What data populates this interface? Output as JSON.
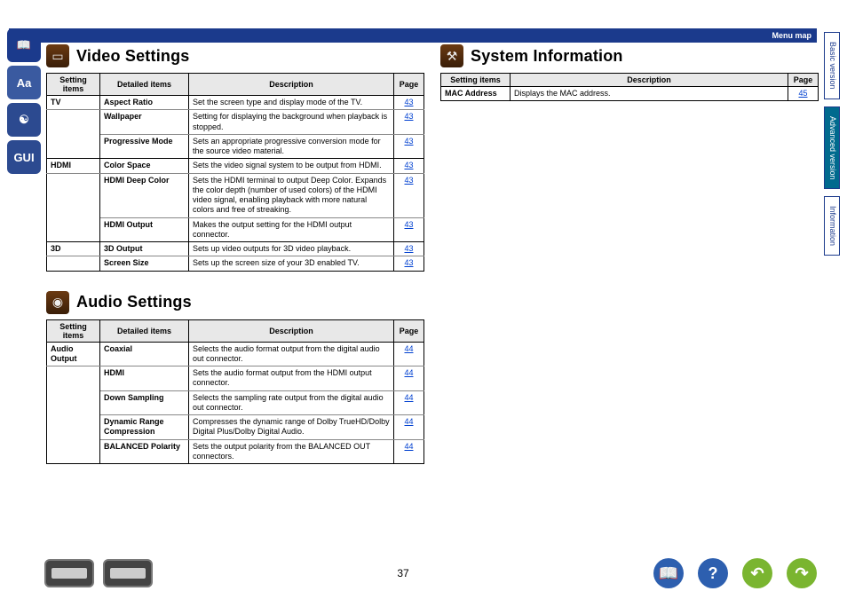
{
  "menumap": "Menu map",
  "pageNum": "37",
  "rightTabs": {
    "basic": "Basic version",
    "adv": "Advanced version",
    "info": "Information"
  },
  "video": {
    "title": "Video Settings",
    "headers": {
      "si": "Setting items",
      "di": "Detailed items",
      "desc": "Description",
      "pg": "Page"
    },
    "rows": [
      {
        "si": "TV",
        "di": "Aspect Ratio",
        "desc": "Set the screen type and display mode of the TV.",
        "pg": "43",
        "g": false
      },
      {
        "si": "",
        "di": "Wallpaper",
        "desc": "Setting for displaying the background when playback is stopped.",
        "pg": "43",
        "g": false
      },
      {
        "si": "",
        "di": "Progressive Mode",
        "desc": "Sets an appropriate progressive conversion mode for the source video material.",
        "pg": "43",
        "g": true
      },
      {
        "si": "HDMI",
        "di": "Color Space",
        "desc": "Sets the video signal system to be output from HDMI.",
        "pg": "43",
        "g": false
      },
      {
        "si": "",
        "di": "HDMI Deep Color",
        "desc": "Sets the HDMI terminal to output Deep Color. Expands the color depth (number of used colors) of the HDMI video signal, enabling playback with more natural colors and free of streaking.",
        "pg": "43",
        "g": false
      },
      {
        "si": "",
        "di": "HDMI Output",
        "desc": "Makes the output setting for the HDMI output connector.",
        "pg": "43",
        "g": true
      },
      {
        "si": "3D",
        "di": "3D Output",
        "desc": "Sets up video outputs for 3D video playback.",
        "pg": "43",
        "g": false
      },
      {
        "si": "",
        "di": "Screen Size",
        "desc": "Sets up the screen size of your 3D enabled TV.",
        "pg": "43",
        "g": true
      }
    ]
  },
  "audio": {
    "title": "Audio Settings",
    "headers": {
      "si": "Setting items",
      "di": "Detailed items",
      "desc": "Description",
      "pg": "Page"
    },
    "rows": [
      {
        "si": "Audio Output",
        "di": "Coaxial",
        "desc": "Selects the audio format output from the digital audio out connector.",
        "pg": "44",
        "g": false
      },
      {
        "si": "",
        "di": "HDMI",
        "desc": "Sets the audio format output from the HDMI output connector.",
        "pg": "44",
        "g": false
      },
      {
        "si": "",
        "di": "Down Sampling",
        "desc": "Selects the sampling rate output from the digital audio out connector.",
        "pg": "44",
        "g": false
      },
      {
        "si": "",
        "di": "Dynamic Range Compression",
        "desc": "Compresses the dynamic range of Dolby TrueHD/Dolby Digital Plus/Dolby Digital Audio.",
        "pg": "44",
        "g": false
      },
      {
        "si": "",
        "di": "BALANCED Polarity",
        "desc": "Sets the output polarity from the BALANCED OUT connectors.",
        "pg": "44",
        "g": true
      }
    ]
  },
  "system": {
    "title": "System Information",
    "headers": {
      "si": "Setting items",
      "desc": "Description",
      "pg": "Page"
    },
    "rows": [
      {
        "si": "MAC Address",
        "desc": "Displays the MAC address.",
        "pg": "45",
        "g": true
      }
    ]
  }
}
